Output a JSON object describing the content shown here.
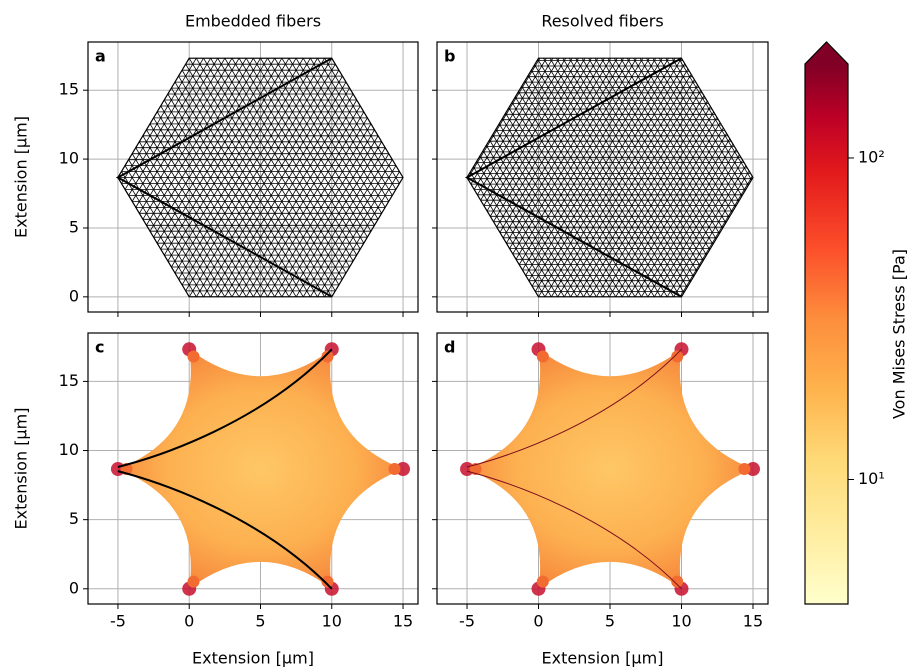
{
  "chart_data": [
    {
      "type": "mesh",
      "title": "Embedded fibers",
      "panel_label": "a",
      "ylabel": "Extension [µm]",
      "xlim": [
        -7.1,
        16.05
      ],
      "ylim": [
        -1.1,
        18.5
      ],
      "xticks": [
        -5,
        0,
        5,
        10,
        15
      ],
      "yticks": [
        0,
        5,
        10,
        15
      ],
      "grid": true
    },
    {
      "type": "mesh",
      "title": "Resolved fibers",
      "panel_label": "b",
      "xlim": [
        -7.1,
        16.05
      ],
      "ylim": [
        -1.1,
        18.5
      ],
      "xticks": [
        -5,
        0,
        5,
        10,
        15
      ],
      "yticks": [
        0,
        5,
        10,
        15
      ],
      "grid": true
    },
    {
      "type": "field",
      "panel_label": "c",
      "xlabel": "Extension [µm]",
      "ylabel": "Extension [µm]",
      "xlim": [
        -7.1,
        16.05
      ],
      "ylim": [
        -1.1,
        18.5
      ],
      "xticks": [
        -5,
        0,
        5,
        10,
        15
      ],
      "yticks": [
        0,
        5,
        10,
        15
      ],
      "grid": true,
      "fiber_color": "#000000"
    },
    {
      "type": "field",
      "panel_label": "d",
      "xlabel": "Extension [µm]",
      "xlim": [
        -7.1,
        16.05
      ],
      "ylim": [
        -1.1,
        18.5
      ],
      "xticks": [
        -5,
        0,
        5,
        10,
        15
      ],
      "yticks": [
        0,
        5,
        10,
        15
      ],
      "grid": true,
      "fiber_color": "#7a0c1e"
    }
  ],
  "colorbar": {
    "label": "Von Mises Stress [Pa]",
    "scale": "log",
    "lim": [
      4.1,
      196
    ],
    "ticks": [
      {
        "value": 10,
        "label": "10¹"
      },
      {
        "value": 100,
        "label": "10²"
      }
    ]
  }
}
